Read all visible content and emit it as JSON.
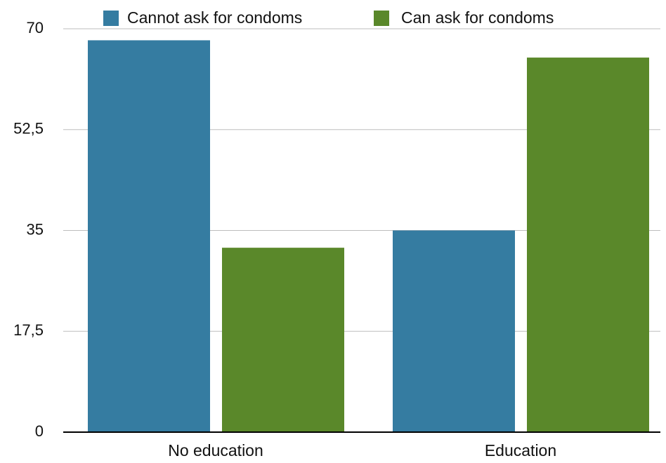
{
  "chart_data": {
    "type": "bar",
    "categories": [
      "No education",
      "Education"
    ],
    "series": [
      {
        "name": "Cannot ask for condoms",
        "color": "#357ca1",
        "values": [
          68,
          35
        ]
      },
      {
        "name": "Can ask for condoms",
        "color": "#5a882a",
        "values": [
          32,
          65
        ]
      }
    ],
    "ylim": [
      0,
      70
    ],
    "yticks": [
      "0",
      "17,5",
      "35",
      "52,5",
      "70"
    ],
    "ytick_values": [
      0,
      17.5,
      35,
      52.5,
      70
    ],
    "grid": true,
    "legend_position": "top",
    "title": "",
    "xlabel": "",
    "ylabel": ""
  }
}
